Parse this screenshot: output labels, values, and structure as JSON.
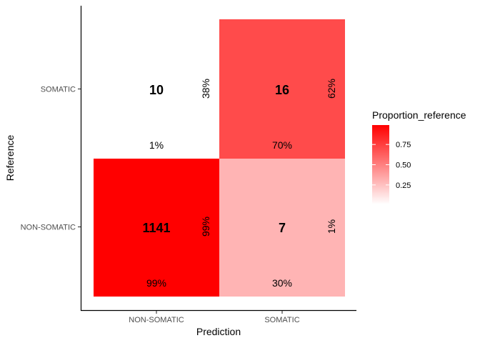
{
  "chart_data": {
    "type": "heatmap",
    "title": "",
    "xlabel": "Prediction",
    "ylabel": "Reference",
    "x_categories": [
      "NON-SOMATIC",
      "SOMATIC"
    ],
    "y_categories": [
      "NON-SOMATIC",
      "SOMATIC"
    ],
    "cells": [
      {
        "x": "NON-SOMATIC",
        "y": "NON-SOMATIC",
        "count": "1141",
        "proportion_reference": 0.99,
        "row_pct": "99%",
        "col_pct": "99%"
      },
      {
        "x": "SOMATIC",
        "y": "NON-SOMATIC",
        "count": "7",
        "proportion_reference": 0.3,
        "row_pct": "1%",
        "col_pct": "30%"
      },
      {
        "x": "NON-SOMATIC",
        "y": "SOMATIC",
        "count": "10",
        "proportion_reference": 0.01,
        "row_pct": "38%",
        "col_pct": "1%"
      },
      {
        "x": "SOMATIC",
        "y": "SOMATIC",
        "count": "16",
        "proportion_reference": 0.7,
        "row_pct": "62%",
        "col_pct": "70%"
      }
    ],
    "legend": {
      "title": "Proportion_reference",
      "position": "right",
      "ticks": [
        "0.25",
        "0.50",
        "0.75"
      ],
      "range": [
        0.01,
        0.99
      ],
      "low_color": "#ffffff",
      "high_color": "#ff0000"
    },
    "grid": false
  }
}
